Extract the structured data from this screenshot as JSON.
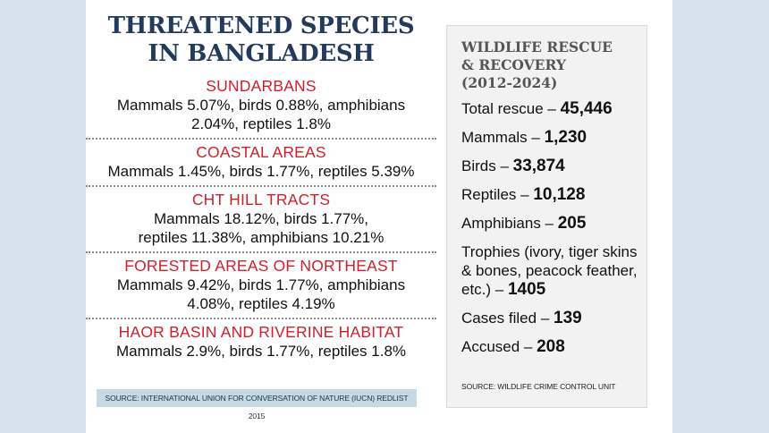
{
  "left": {
    "title_line1": "THREATENED SPECIES",
    "title_line2": "IN BANGLADESH",
    "regions": [
      {
        "name": "SUNDARBANS",
        "stats_line1": "Mammals 5.07%, birds 0.88%, amphibians",
        "stats_line2": "2.04%, reptiles 1.8%"
      },
      {
        "name": "COASTAL AREAS",
        "stats_line1": "Mammals 1.45%, birds 1.77%, reptiles 5.39%",
        "stats_line2": ""
      },
      {
        "name": "CHT HILL TRACTS",
        "stats_line1": "Mammals 18.12%, birds 1.77%,",
        "stats_line2": "reptiles 11.38%, amphibians 10.21%"
      },
      {
        "name": "FORESTED AREAS OF NORTHEAST",
        "stats_line1": "Mammals 9.42%, birds 1.77%, amphibians",
        "stats_line2": "4.08%, reptiles 4.19%"
      },
      {
        "name": "HAOR BASIN AND RIVERINE HABITAT",
        "stats_line1": "Mammals 2.9%, birds 1.77%, reptiles 1.8%",
        "stats_line2": ""
      }
    ],
    "source": "SOURCE: INTERNATIONAL UNION FOR CONVERSATION OF NATURE (IUCN)  REDLIST 2015"
  },
  "right": {
    "title_line1": "WILDLIFE RESCUE",
    "title_line2": "& RECOVERY",
    "title_line3": "(2012-2024)",
    "stats": [
      {
        "label": "Total rescue – ",
        "value": "45,446"
      },
      {
        "label": "Mammals – ",
        "value": "1,230"
      },
      {
        "label": "Birds – ",
        "value": "33,874"
      },
      {
        "label": "Reptiles – ",
        "value": "10,128"
      },
      {
        "label": "Amphibians – ",
        "value": "205"
      },
      {
        "label": "Trophies (ivory, tiger skins & bones, peacock feather, etc.) – ",
        "value": "1405"
      },
      {
        "label": "Cases filed – ",
        "value": "139"
      },
      {
        "label": "Accused – ",
        "value": "208"
      }
    ],
    "source": "SOURCE: WILDLIFE CRIME CONTROL UNIT"
  },
  "colors": {
    "title": "#233a5c",
    "region_name": "#d0202b",
    "source_bar": "#c6dae6",
    "background": "#d6e3ec"
  }
}
